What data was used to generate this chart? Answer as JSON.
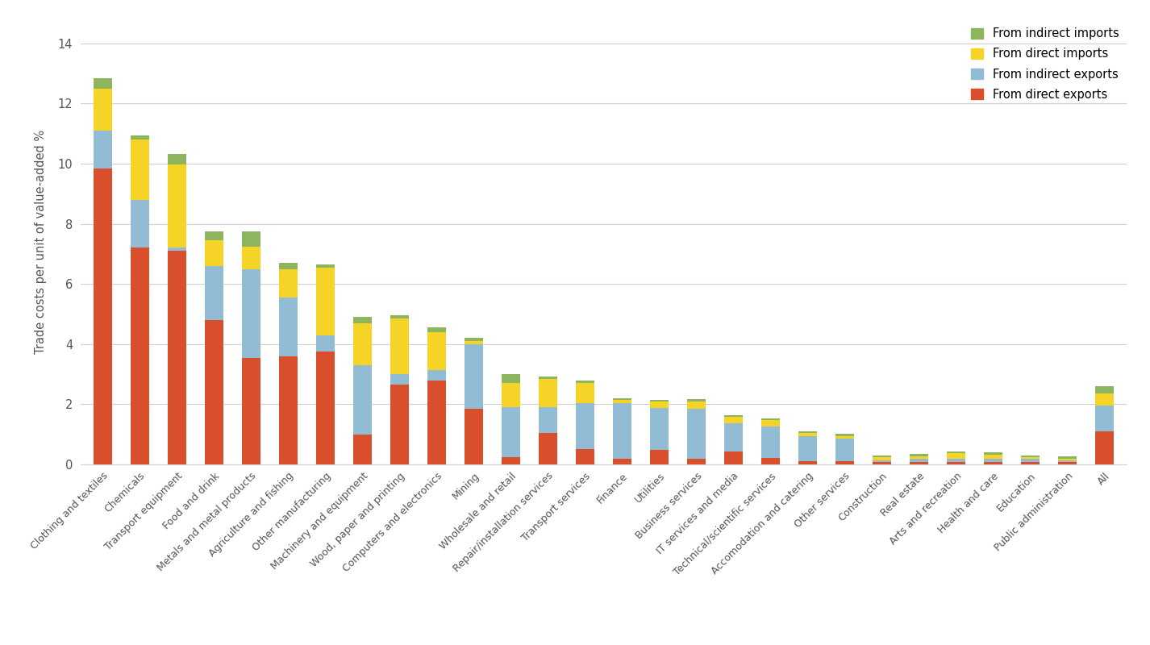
{
  "categories": [
    "Clothing and textiles",
    "Chemicals",
    "Transport equipment",
    "Food and drink",
    "Metals and metal products",
    "Agriculture and fishing",
    "Other manufacturing",
    "Machinery and equipment",
    "Wood, paper and printing",
    "Computers and electronics",
    "Mining",
    "Wholesale and retail",
    "Repair/installation services",
    "Transport services",
    "Finance",
    "Utilities",
    "Business services",
    "IT services and media",
    "Technical/scientific services",
    "Accomodation and catering",
    "Other services",
    "Construction",
    "Real estate",
    "Arts and recreation",
    "Health and care",
    "Education",
    "Public administration",
    "All"
  ],
  "direct_exports": [
    9.85,
    7.2,
    7.1,
    4.8,
    3.55,
    3.6,
    3.75,
    1.0,
    2.65,
    2.8,
    1.85,
    0.25,
    1.05,
    0.5,
    0.2,
    0.48,
    0.2,
    0.42,
    0.22,
    0.1,
    0.1,
    0.08,
    0.08,
    0.08,
    0.08,
    0.08,
    0.08,
    1.1
  ],
  "indirect_exports": [
    1.25,
    1.6,
    0.12,
    1.8,
    2.95,
    1.95,
    0.55,
    2.3,
    0.35,
    0.35,
    2.15,
    1.65,
    0.85,
    1.55,
    1.85,
    1.4,
    1.65,
    0.95,
    1.05,
    0.85,
    0.75,
    0.06,
    0.1,
    0.1,
    0.1,
    0.1,
    0.06,
    0.85
  ],
  "direct_imports": [
    1.4,
    2.0,
    2.75,
    0.85,
    0.75,
    0.95,
    2.25,
    1.4,
    1.85,
    1.25,
    0.1,
    0.8,
    0.95,
    0.65,
    0.1,
    0.2,
    0.25,
    0.2,
    0.2,
    0.1,
    0.1,
    0.1,
    0.1,
    0.2,
    0.15,
    0.06,
    0.06,
    0.4
  ],
  "indirect_imports": [
    0.35,
    0.15,
    0.35,
    0.3,
    0.5,
    0.2,
    0.1,
    0.2,
    0.1,
    0.15,
    0.1,
    0.3,
    0.08,
    0.08,
    0.06,
    0.06,
    0.06,
    0.06,
    0.06,
    0.06,
    0.06,
    0.06,
    0.06,
    0.06,
    0.06,
    0.06,
    0.06,
    0.25
  ],
  "color_direct_exports": "#d94f2b",
  "color_indirect_exports": "#91bcd4",
  "color_direct_imports": "#f5d327",
  "color_indirect_imports": "#8db55e",
  "ylabel": "Trade costs per unit of value-added %",
  "yticks": [
    0,
    2,
    4,
    6,
    8,
    10,
    12,
    14
  ],
  "ylim": [
    0,
    14.8
  ],
  "background_color": "#ffffff",
  "grid_color": "#d0d0d0",
  "bar_width": 0.5
}
